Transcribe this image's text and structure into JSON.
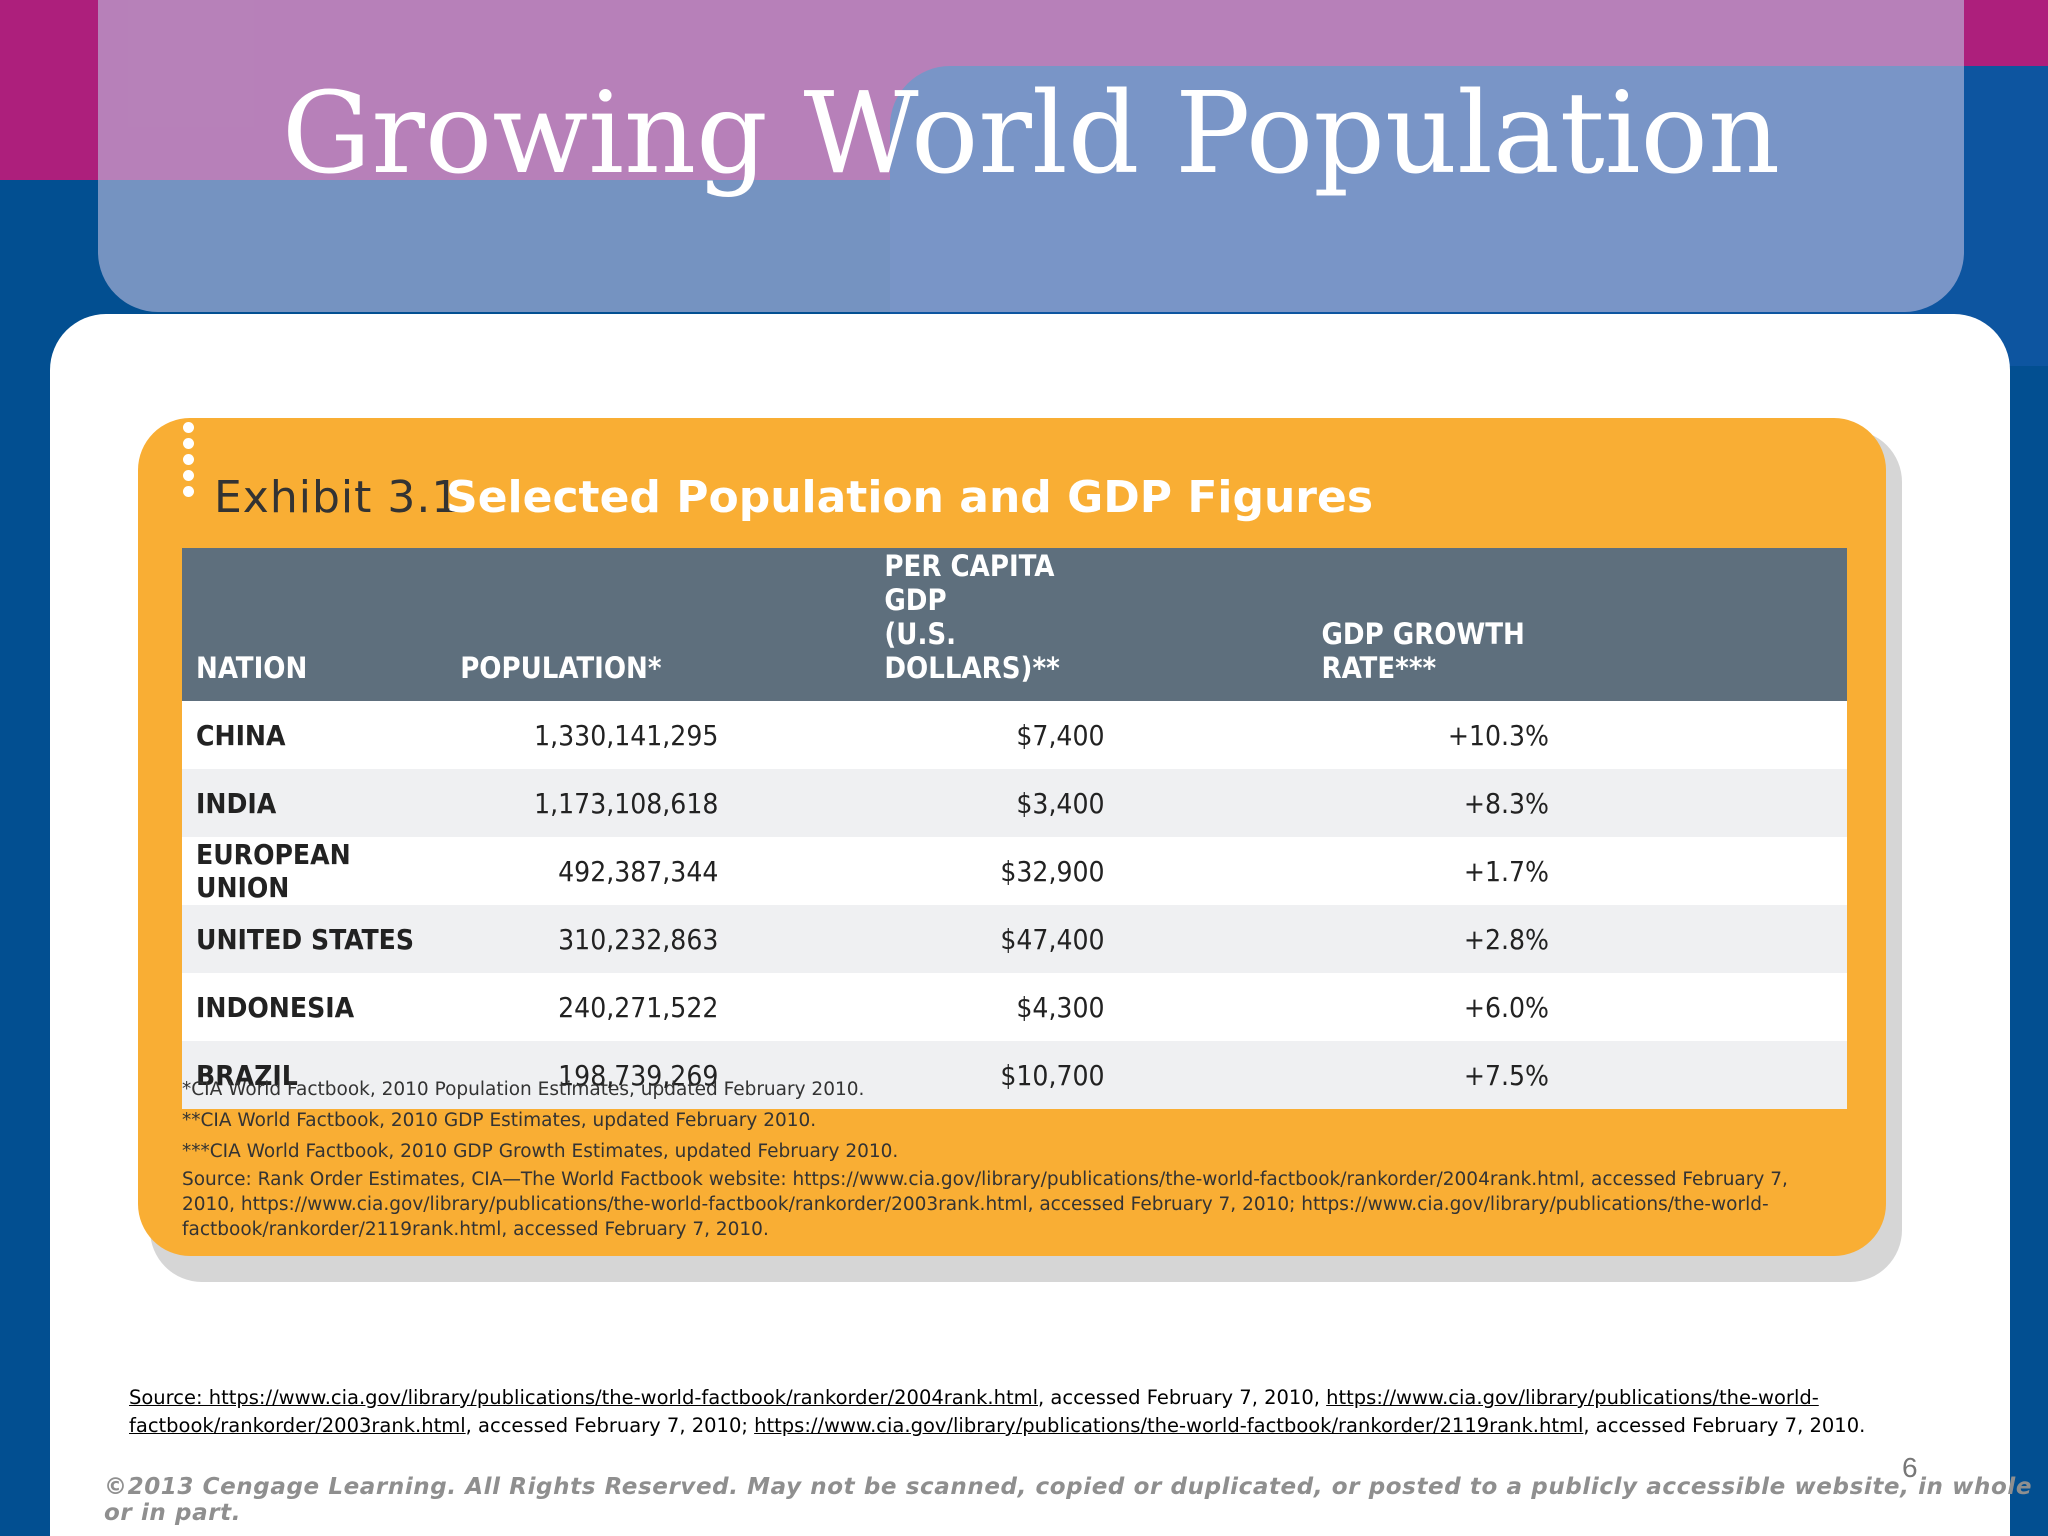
{
  "slide": {
    "title": "Growing World Population",
    "page_number": "6",
    "copyright": "©2013 Cengage Learning. All Rights Reserved. May not be scanned, copied or duplicated, or posted to a publicly accessible website, in whole or in part."
  },
  "exhibit": {
    "label": "Exhibit 3.1",
    "title": "Selected Population and GDP Figures",
    "headers": {
      "nation": "NATION",
      "population": "POPULATION*",
      "gdp_line1": "PER CAPITA GDP",
      "gdp_line2": "(U.S. DOLLARS)**",
      "rate": "GDP GROWTH RATE***"
    },
    "rows": [
      {
        "nation": "CHINA",
        "population": "1,330,141,295",
        "gdp": "$7,400",
        "rate": "+10.3%"
      },
      {
        "nation": "INDIA",
        "population": "1,173,108,618",
        "gdp": "$3,400",
        "rate": "+8.3%"
      },
      {
        "nation": "EUROPEAN UNION",
        "population": "492,387,344",
        "gdp": "$32,900",
        "rate": "+1.7%"
      },
      {
        "nation": "UNITED STATES",
        "population": "310,232,863",
        "gdp": "$47,400",
        "rate": "+2.8%"
      },
      {
        "nation": "INDONESIA",
        "population": "240,271,522",
        "gdp": "$4,300",
        "rate": "+6.0%"
      },
      {
        "nation": "BRAZIL",
        "population": "198,739,269",
        "gdp": "$10,700",
        "rate": "+7.5%"
      }
    ],
    "notes": [
      "*CIA World Factbook, 2010 Population Estimates, updated February 2010.",
      "**CIA World Factbook, 2010 GDP Estimates, updated February 2010.",
      "***CIA World Factbook, 2010 GDP Growth Estimates, updated February 2010."
    ],
    "source_note": "Source: Rank Order Estimates, CIA—The World Factbook website: https://www.cia.gov/library/publications/the-world-factbook/rankorder/2004rank.html, accessed February 7, 2010, https://www.cia.gov/library/publications/the-world-factbook/rankorder/2003rank.html, accessed February 7, 2010; https://www.cia.gov/library/publications/the-world-factbook/rankorder/2119rank.html, accessed February 7, 2010."
  },
  "source": {
    "link1": "Source: https://www.cia.gov/library/publications/the-world-factbook/rankorder/2004rank.html",
    "text1": ", accessed February 7, 2010, ",
    "link2": "https://www.cia.gov/library/publications/the-world-factbook/rankorder/2003rank.html",
    "text2": ", accessed February 7, 2010; ",
    "link3": "https://www.cia.gov/library/publications/the-world-factbook/rankorder/2119rank.html",
    "text3": ", accessed February 7, 2010."
  },
  "colors": {
    "magenta": "#ad1f7c",
    "blue": "#024f91",
    "exhibit_orange": "#f9ae34",
    "header_slate": "#5e6f7d"
  }
}
